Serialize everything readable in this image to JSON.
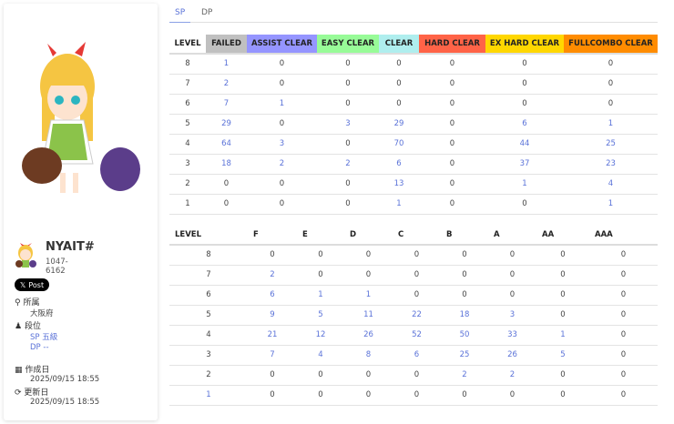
{
  "profile": {
    "name": "NYAIT#",
    "id": "1047-6162",
    "post_label": "Post",
    "affiliation_label": "所属",
    "affiliation": "大阪府",
    "rank_label": "段位",
    "rank_sp": "SP 五級",
    "rank_dp": "DP --",
    "created_label": "作成日",
    "created": "2025/09/15 18:55",
    "updated_label": "更新日",
    "updated": "2025/09/15 18:55"
  },
  "tabs": [
    {
      "label": "SP",
      "active": true
    },
    {
      "label": "DP",
      "active": false
    }
  ],
  "clear_table": {
    "headers": [
      "LEVEL",
      "FAILED",
      "ASSIST CLEAR",
      "EASY CLEAR",
      "CLEAR",
      "HARD CLEAR",
      "EX HARD CLEAR",
      "FULLCOMBO CLEAR"
    ],
    "header_colors": [
      "#ffffff",
      "#c0c0c0",
      "#9595ff",
      "#98fb98",
      "#afeeee",
      "#ff6347",
      "#ffd700",
      "#ff8c00"
    ],
    "rows": [
      [
        "8",
        "1",
        "0",
        "0",
        "0",
        "0",
        "0",
        "0"
      ],
      [
        "7",
        "2",
        "0",
        "0",
        "0",
        "0",
        "0",
        "0"
      ],
      [
        "6",
        "7",
        "1",
        "0",
        "0",
        "0",
        "0",
        "0"
      ],
      [
        "5",
        "29",
        "0",
        "3",
        "29",
        "0",
        "6",
        "1"
      ],
      [
        "4",
        "64",
        "3",
        "0",
        "70",
        "0",
        "44",
        "25"
      ],
      [
        "3",
        "18",
        "2",
        "2",
        "6",
        "0",
        "37",
        "23"
      ],
      [
        "2",
        "0",
        "0",
        "0",
        "13",
        "0",
        "1",
        "4"
      ],
      [
        "1",
        "0",
        "0",
        "0",
        "1",
        "0",
        "0",
        "1"
      ]
    ]
  },
  "grade_table": {
    "headers": [
      "LEVEL",
      "F",
      "E",
      "D",
      "C",
      "B",
      "A",
      "AA",
      "AAA"
    ],
    "rows": [
      [
        "8",
        "0",
        "0",
        "0",
        "0",
        "0",
        "0",
        "0",
        "0"
      ],
      [
        "7",
        "2",
        "0",
        "0",
        "0",
        "0",
        "0",
        "0",
        "0"
      ],
      [
        "6",
        "6",
        "1",
        "1",
        "0",
        "0",
        "0",
        "0",
        "0"
      ],
      [
        "5",
        "9",
        "5",
        "11",
        "22",
        "18",
        "3",
        "0",
        "0"
      ],
      [
        "4",
        "21",
        "12",
        "26",
        "52",
        "50",
        "33",
        "1",
        "0"
      ],
      [
        "3",
        "7",
        "4",
        "8",
        "6",
        "25",
        "26",
        "5",
        "0"
      ],
      [
        "2",
        "0",
        "0",
        "0",
        "0",
        "2",
        "2",
        "0",
        "0"
      ],
      [
        "1",
        "0",
        "0",
        "0",
        "0",
        "0",
        "0",
        "0",
        "0"
      ]
    ]
  },
  "link_color": "#5a72d8"
}
